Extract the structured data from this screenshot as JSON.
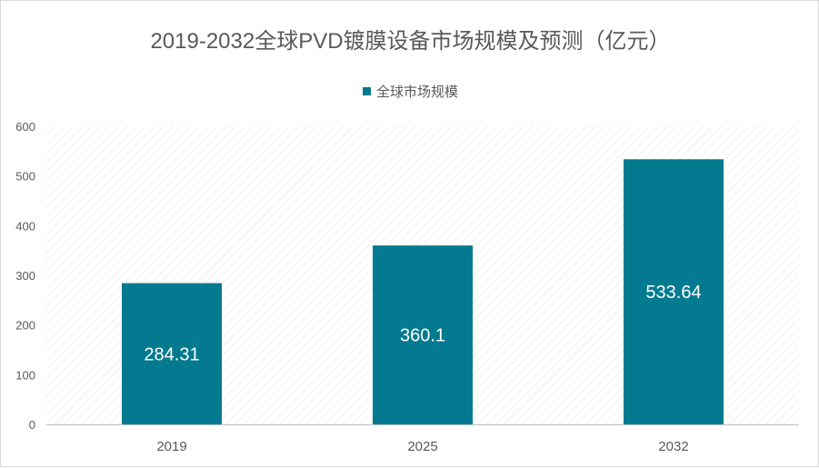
{
  "chart_data": {
    "type": "bar",
    "title": "2019-2032全球PVD镀膜设备市场规模及预测（亿元）",
    "categories": [
      "2019",
      "2025",
      "2032"
    ],
    "series": [
      {
        "name": "全球市场规模",
        "values": [
          284.31,
          360.1,
          533.64
        ],
        "labels": [
          "284.31",
          "360.1",
          "533.64"
        ]
      }
    ],
    "xlabel": "",
    "ylabel": "",
    "ylim": [
      0,
      600
    ],
    "yticks": [
      0,
      100,
      200,
      300,
      400,
      500,
      600
    ],
    "grid": false,
    "legend_position": "top",
    "colors": {
      "bar": "#037A8F",
      "plot_background_hatch": "#e4e4e4",
      "axis": "#bfbfbf",
      "text": "#595959",
      "data_label": "#ffffff"
    }
  }
}
